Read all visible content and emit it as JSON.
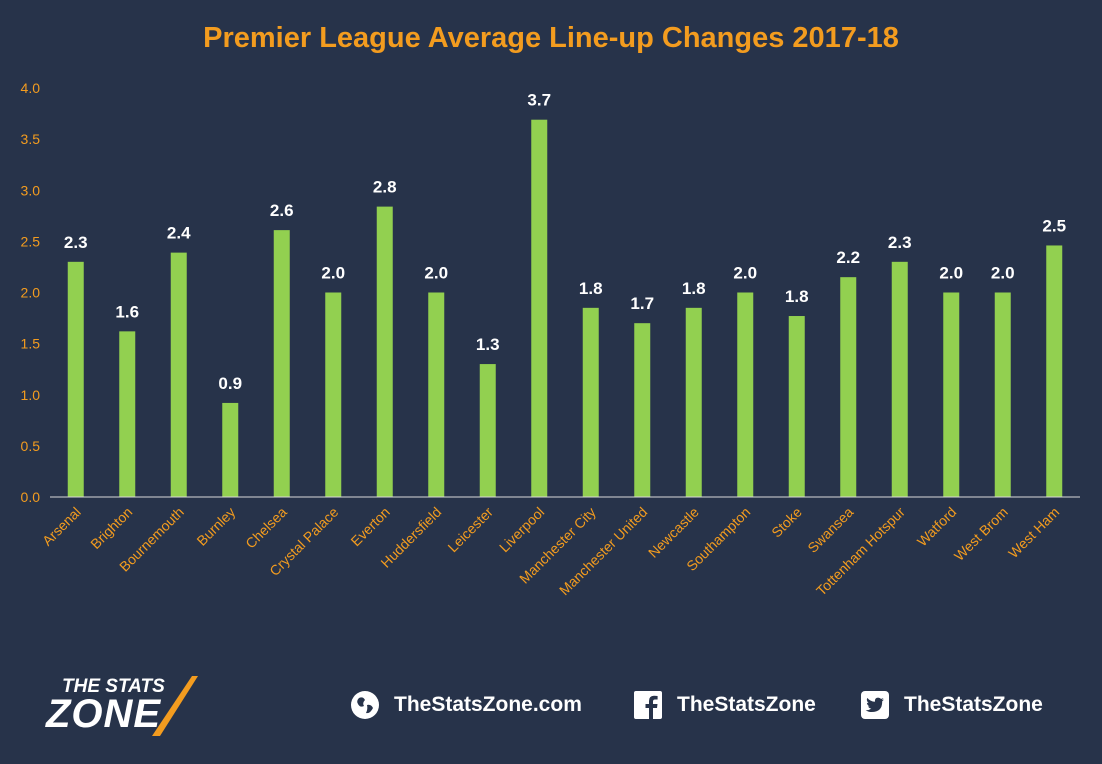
{
  "chart_data": {
    "type": "bar",
    "title": "Premier League Average Line-up Changes 2017-18",
    "categories": [
      "Arsenal",
      "Brighton",
      "Bournemouth",
      "Burnley",
      "Chelsea",
      "Crystal Palace",
      "Everton",
      "Huddersfield",
      "Leicester",
      "Liverpool",
      "Manchester City",
      "Manchester United",
      "Newcastle",
      "Southampton",
      "Stoke",
      "Swansea",
      "Tottenham Hotspur",
      "Watford",
      "West Brom",
      "West Ham"
    ],
    "values": [
      2.3,
      1.6,
      2.4,
      0.9,
      2.6,
      2.0,
      2.8,
      2.0,
      1.3,
      3.7,
      1.8,
      1.7,
      1.8,
      2.0,
      1.8,
      2.2,
      2.3,
      2.0,
      2.0,
      2.5
    ],
    "value_labels": [
      "2.3",
      "1.6",
      "2.4",
      "0.9",
      "2.6",
      "2.0",
      "2.8",
      "2.0",
      "1.3",
      "3.7",
      "1.8",
      "1.7",
      "1.8",
      "2.0",
      "1.8",
      "2.2",
      "2.3",
      "2.0",
      "2.0",
      "2.5"
    ],
    "bar_heights": [
      2.3,
      1.62,
      2.39,
      0.92,
      2.61,
      2.0,
      2.84,
      2.0,
      1.3,
      3.69,
      1.85,
      1.7,
      1.85,
      2.0,
      1.77,
      2.15,
      2.3,
      2.0,
      2.0,
      2.46
    ],
    "yticks": [
      "0.0",
      "0.5",
      "1.0",
      "1.5",
      "2.0",
      "2.5",
      "3.0",
      "3.5",
      "4.0"
    ],
    "ylim": [
      0,
      4.0
    ],
    "xlabel": "",
    "ylabel": "",
    "grid": false,
    "legend": "none",
    "colors": {
      "bar": "#92d050",
      "background": "#27334a",
      "title": "#f39c1f",
      "tick_label": "#f39c1f",
      "data_label": "#ffffff",
      "axis": "#d9d9d9"
    }
  },
  "footer": {
    "website": "TheStatsZone.com",
    "facebook": "TheStatsZone",
    "twitter": "TheStatsZone",
    "logo_top": "THE STATS",
    "logo_bottom": "ZONE",
    "icons": [
      "globe-icon",
      "facebook-icon",
      "twitter-icon"
    ]
  }
}
